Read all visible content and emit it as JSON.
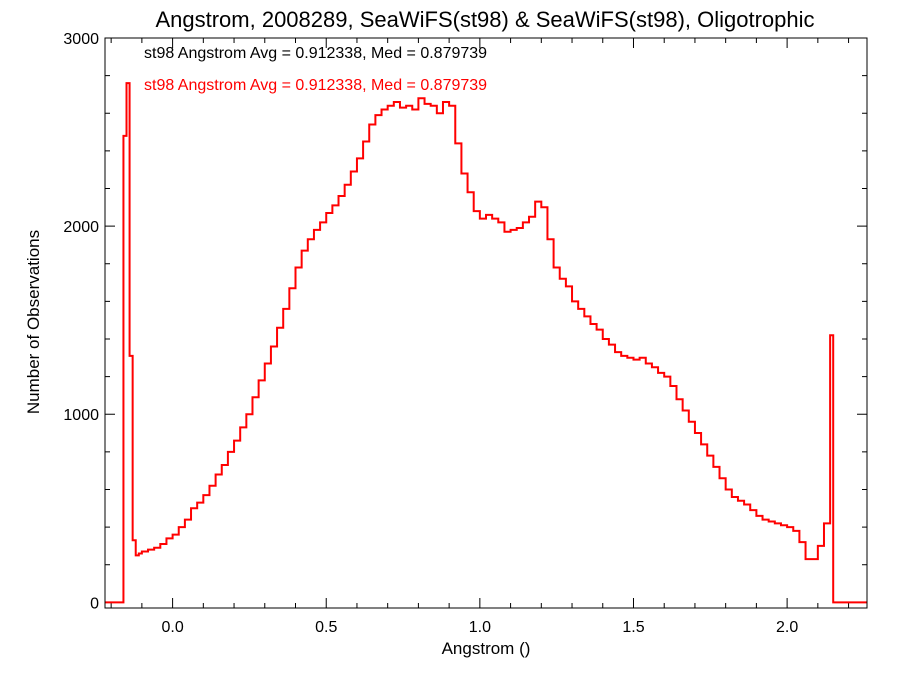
{
  "chart_data": {
    "type": "line",
    "title": "Angstrom, 2008289, SeaWiFS(st98) & SeaWiFS(st98), Oligotrophic",
    "xlabel": "Angstrom ()",
    "ylabel": "Number of Observations",
    "xlim": [
      -0.22,
      2.26
    ],
    "ylim": [
      -30,
      3000
    ],
    "x_ticks": [
      {
        "value": 0.0,
        "label": "0.0"
      },
      {
        "value": 0.5,
        "label": "0.5"
      },
      {
        "value": 1.0,
        "label": "1.0"
      },
      {
        "value": 1.5,
        "label": "1.5"
      },
      {
        "value": 2.0,
        "label": "2.0"
      }
    ],
    "y_ticks": [
      {
        "value": 0,
        "label": "0"
      },
      {
        "value": 1000,
        "label": "1000"
      },
      {
        "value": 2000,
        "label": "2000"
      },
      {
        "value": 3000,
        "label": "3000"
      }
    ],
    "annotations": [
      {
        "text": "st98 Angstrom Avg = 0.912338, Med = 0.879739",
        "color": "#000000"
      },
      {
        "text": "st98 Angstrom Avg = 0.912338, Med = 0.879739",
        "color": "#ff0000"
      }
    ],
    "series": [
      {
        "color": "#ff0000",
        "step": true,
        "x": [
          -0.22,
          -0.16,
          -0.15,
          -0.14,
          -0.13,
          -0.12,
          -0.11,
          -0.1,
          -0.08,
          -0.06,
          -0.04,
          -0.02,
          0.0,
          0.02,
          0.04,
          0.06,
          0.08,
          0.1,
          0.12,
          0.14,
          0.16,
          0.18,
          0.2,
          0.22,
          0.24,
          0.26,
          0.28,
          0.3,
          0.32,
          0.34,
          0.36,
          0.38,
          0.4,
          0.42,
          0.44,
          0.46,
          0.48,
          0.5,
          0.52,
          0.54,
          0.56,
          0.58,
          0.6,
          0.62,
          0.64,
          0.66,
          0.68,
          0.7,
          0.72,
          0.74,
          0.76,
          0.78,
          0.8,
          0.82,
          0.84,
          0.86,
          0.88,
          0.9,
          0.92,
          0.94,
          0.96,
          0.98,
          1.0,
          1.02,
          1.04,
          1.06,
          1.08,
          1.1,
          1.12,
          1.14,
          1.16,
          1.18,
          1.2,
          1.22,
          1.24,
          1.26,
          1.28,
          1.3,
          1.32,
          1.34,
          1.36,
          1.38,
          1.4,
          1.42,
          1.44,
          1.46,
          1.48,
          1.5,
          1.52,
          1.54,
          1.56,
          1.58,
          1.6,
          1.62,
          1.64,
          1.66,
          1.68,
          1.7,
          1.72,
          1.74,
          1.76,
          1.78,
          1.8,
          1.82,
          1.84,
          1.86,
          1.88,
          1.9,
          1.92,
          1.94,
          1.96,
          1.98,
          2.0,
          2.02,
          2.04,
          2.06,
          2.08,
          2.1,
          2.12,
          2.14,
          2.15,
          2.26
        ],
        "y": [
          0,
          2480,
          2760,
          1310,
          330,
          250,
          260,
          270,
          280,
          290,
          310,
          340,
          360,
          400,
          440,
          500,
          530,
          570,
          620,
          680,
          730,
          800,
          860,
          930,
          1000,
          1090,
          1180,
          1270,
          1360,
          1460,
          1560,
          1670,
          1780,
          1870,
          1930,
          1980,
          2020,
          2070,
          2110,
          2160,
          2220,
          2290,
          2360,
          2450,
          2540,
          2590,
          2620,
          2640,
          2660,
          2630,
          2640,
          2620,
          2680,
          2650,
          2640,
          2600,
          2660,
          2640,
          2440,
          2280,
          2180,
          2080,
          2040,
          2060,
          2040,
          2020,
          1970,
          1980,
          1990,
          2020,
          2050,
          2130,
          2100,
          1930,
          1780,
          1720,
          1680,
          1600,
          1560,
          1520,
          1480,
          1450,
          1400,
          1370,
          1330,
          1310,
          1300,
          1290,
          1300,
          1270,
          1250,
          1220,
          1200,
          1150,
          1080,
          1020,
          960,
          900,
          840,
          780,
          720,
          660,
          600,
          560,
          540,
          520,
          490,
          460,
          440,
          430,
          420,
          410,
          400,
          380,
          320,
          230,
          230,
          300,
          420,
          1420,
          0,
          0
        ]
      }
    ]
  }
}
